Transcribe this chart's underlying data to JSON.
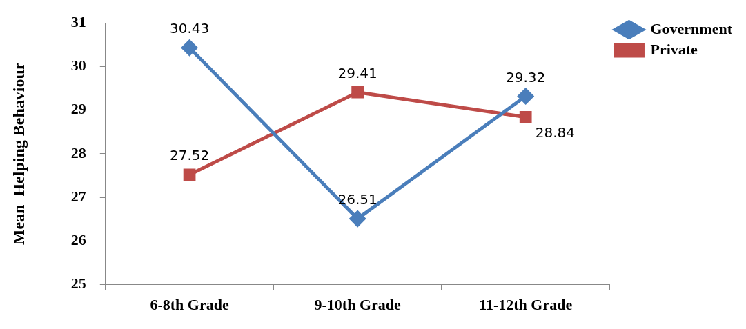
{
  "chart_data": {
    "type": "line",
    "ylabel": "Mean  Helping Behaviour",
    "categories": [
      "6-8th Grade",
      "9-10th Grade",
      "11-12th Grade"
    ],
    "series": [
      {
        "name": "Government",
        "color": "#4a7ebb",
        "values": [
          30.43,
          26.51,
          29.32
        ],
        "marker": "diamond"
      },
      {
        "name": "Private",
        "color": "#be4b48",
        "values": [
          27.52,
          29.41,
          28.84
        ],
        "marker": "square"
      }
    ],
    "ylim": [
      25,
      31
    ],
    "yticks": [
      25,
      26,
      27,
      28,
      29,
      30,
      31
    ],
    "grid": false,
    "legend": "top right",
    "data_labels": true,
    "line_style": "solid"
  }
}
